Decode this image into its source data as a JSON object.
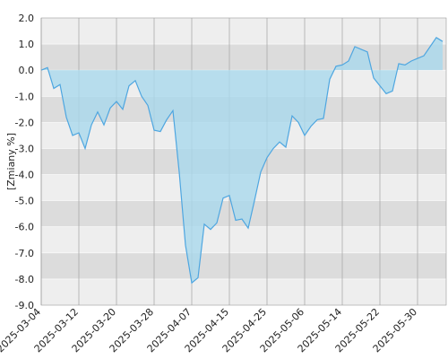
{
  "chart_data": {
    "type": "area",
    "y_label": "[Zmiany %]",
    "categories": [
      "2025-03-04",
      null,
      null,
      null,
      null,
      null,
      "2025-03-12",
      null,
      null,
      null,
      null,
      null,
      "2025-03-20",
      null,
      null,
      null,
      null,
      null,
      "2025-03-28",
      null,
      null,
      null,
      null,
      null,
      "2025-04-07",
      null,
      null,
      null,
      null,
      null,
      "2025-04-15",
      null,
      null,
      null,
      null,
      null,
      "2025-04-25",
      null,
      null,
      null,
      null,
      null,
      "2025-05-06",
      null,
      null,
      null,
      null,
      null,
      "2025-05-14",
      null,
      null,
      null,
      null,
      null,
      "2025-05-22",
      null,
      null,
      null,
      null,
      null,
      "2025-05-30",
      null,
      null,
      null,
      null
    ],
    "values": [
      0.0,
      0.1,
      -0.7,
      -0.55,
      -1.8,
      -2.5,
      -2.4,
      -3.0,
      -2.1,
      -1.6,
      -2.1,
      -1.45,
      -1.2,
      -1.5,
      -0.6,
      -0.4,
      -1.0,
      -1.35,
      -2.3,
      -2.35,
      -1.9,
      -1.55,
      -3.9,
      -6.7,
      -8.15,
      -7.95,
      -5.9,
      -6.1,
      -5.85,
      -4.9,
      -4.8,
      -5.75,
      -5.7,
      -6.05,
      -5.0,
      -3.9,
      -3.35,
      -3.0,
      -2.75,
      -2.95,
      -1.75,
      -2.0,
      -2.5,
      -2.15,
      -1.9,
      -1.85,
      -0.35,
      0.15,
      0.2,
      0.35,
      0.9,
      0.8,
      0.7,
      -0.3,
      -0.6,
      -0.9,
      -0.8,
      0.25,
      0.2,
      0.35,
      0.45,
      0.55,
      0.9,
      1.25,
      1.1
    ],
    "color": "#4ea6e0",
    "fill_color": "#a9d8ec",
    "ylim": [
      -9,
      2
    ],
    "yticks": [
      {
        "value": 2,
        "label": "2.0"
      },
      {
        "value": 1,
        "label": "1.0"
      },
      {
        "value": 0,
        "label": "0.0"
      },
      {
        "value": -1,
        "label": "-1.0"
      },
      {
        "value": -2,
        "label": "-2.0"
      },
      {
        "value": -3,
        "label": "-3.0"
      },
      {
        "value": -4,
        "label": "-4.0"
      },
      {
        "value": -5,
        "label": "-5.0"
      },
      {
        "value": -6,
        "label": "-6.0"
      },
      {
        "value": -7,
        "label": "-7.0"
      },
      {
        "value": -8,
        "label": "-8.0"
      },
      {
        "value": -9,
        "label": "-9.0"
      }
    ],
    "grid": true
  }
}
